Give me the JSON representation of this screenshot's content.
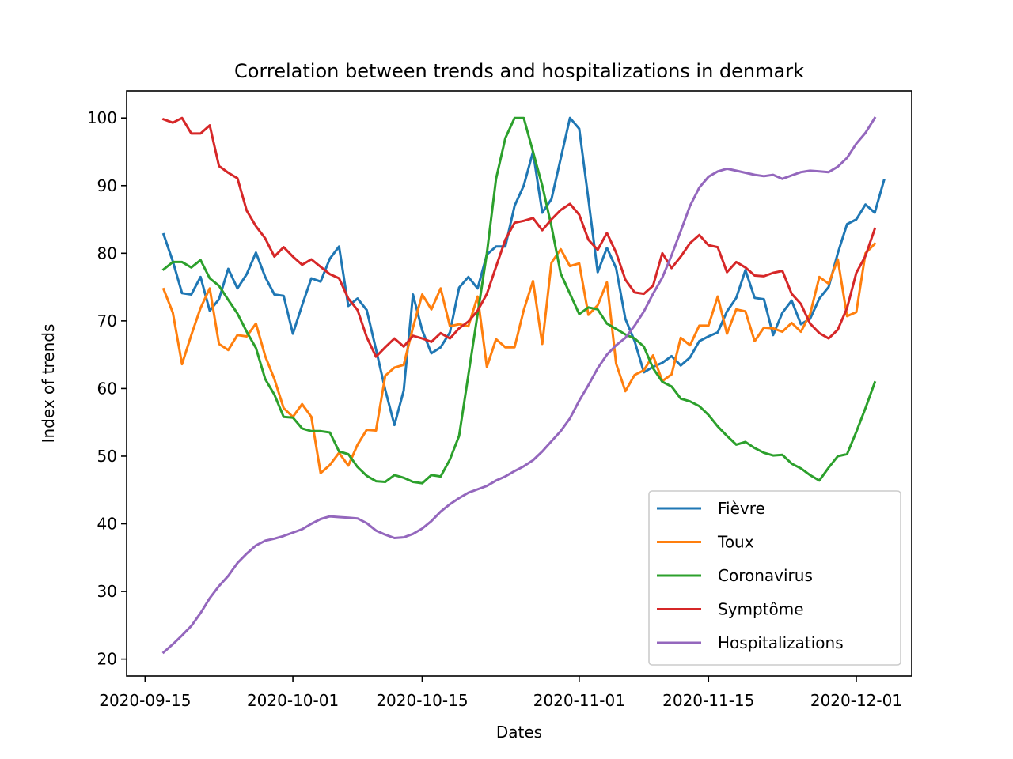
{
  "chart_data": {
    "type": "line",
    "title": "Correlation between trends and hospitalizations in denmark",
    "xlabel": "Dates",
    "ylabel": "Index of trends",
    "x_start": "2020-09-17",
    "x_tick_labels": [
      "2020-09-15",
      "2020-10-01",
      "2020-10-15",
      "2020-11-01",
      "2020-11-15",
      "2020-12-01"
    ],
    "y_ticks": [
      20,
      30,
      40,
      50,
      60,
      70,
      80,
      90,
      100
    ],
    "xlim": [
      "2020-09-13",
      "2020-12-07"
    ],
    "ylim": [
      17.5,
      104
    ],
    "grid": false,
    "legend_position": "lower-right",
    "series": [
      {
        "name": "Fièvre",
        "color": "#1f77b4",
        "values": [
          82.8,
          78.8,
          74.1,
          73.9,
          76.5,
          71.5,
          73.2,
          77.7,
          74.8,
          76.9,
          80.1,
          76.5,
          73.9,
          73.7,
          68.1,
          72.3,
          76.3,
          75.8,
          79.2,
          81.0,
          72.2,
          73.3,
          71.6,
          65.8,
          59.8,
          54.6,
          59.7,
          73.9,
          68.6,
          65.2,
          66.1,
          68.3,
          74.9,
          76.5,
          74.8,
          79.8,
          81.0,
          81.0,
          87.0,
          90.0,
          95.0,
          86.0,
          88.0,
          94.0,
          100.0,
          98.4,
          88.0,
          77.2,
          80.8,
          77.8,
          70.3,
          67.0,
          62.4,
          63.2,
          63.8,
          64.8,
          63.4,
          64.6,
          67.0,
          67.7,
          68.3,
          71.4,
          73.4,
          77.5,
          73.4,
          73.2,
          67.9,
          71.2,
          73.0,
          69.5,
          70.3,
          73.3,
          75.0,
          80.0,
          84.3,
          85.0,
          87.2,
          86.0,
          90.8
        ]
      },
      {
        "name": "Toux",
        "color": "#ff7f0e",
        "values": [
          74.7,
          71.2,
          63.6,
          67.9,
          71.9,
          74.8,
          66.6,
          65.7,
          67.9,
          67.7,
          69.6,
          64.8,
          61.4,
          57.1,
          55.8,
          57.7,
          55.8,
          47.5,
          48.7,
          50.5,
          48.6,
          51.7,
          53.9,
          53.8,
          61.9,
          63.1,
          63.5,
          69.0,
          73.9,
          71.7,
          74.8,
          69.2,
          69.5,
          69.2,
          73.6,
          63.2,
          67.3,
          66.1,
          66.1,
          71.6,
          75.9,
          66.6,
          78.6,
          80.6,
          78.1,
          78.5,
          70.9,
          72.3,
          75.7,
          63.7,
          59.6,
          62.0,
          62.7,
          64.9,
          61.1,
          62.1,
          67.5,
          66.4,
          69.3,
          69.3,
          73.6,
          68.1,
          71.7,
          71.4,
          67.0,
          69.0,
          68.9,
          68.4,
          69.7,
          68.4,
          71.0,
          76.5,
          75.5,
          79.1,
          70.7,
          71.3,
          80.0,
          81.4
        ]
      },
      {
        "name": "Coronavirus",
        "color": "#2ca02c",
        "values": [
          77.6,
          78.7,
          78.7,
          77.9,
          79.0,
          76.3,
          75.2,
          73.1,
          71.1,
          68.4,
          66.0,
          61.4,
          59.1,
          55.8,
          55.7,
          54.1,
          53.7,
          53.7,
          53.5,
          50.7,
          50.3,
          48.4,
          47.1,
          46.3,
          46.2,
          47.2,
          46.8,
          46.2,
          46.0,
          47.2,
          47.0,
          49.5,
          53.0,
          62.0,
          71.0,
          80.0,
          91.0,
          97.0,
          100.0,
          100.0,
          95.0,
          90.0,
          84.0,
          77.0,
          74.0,
          71.0,
          72.0,
          71.7,
          69.6,
          68.8,
          68.0,
          67.4,
          66.2,
          63.0,
          61.0,
          60.3,
          58.5,
          58.1,
          57.4,
          56.1,
          54.4,
          53.0,
          51.7,
          52.1,
          51.2,
          50.5,
          50.1,
          50.2,
          48.9,
          48.2,
          47.2,
          46.4,
          48.3,
          50.0,
          50.3,
          53.6,
          57.1,
          60.9
        ]
      },
      {
        "name": "Symptôme",
        "color": "#d62728",
        "values": [
          99.8,
          99.3,
          100.0,
          97.7,
          97.7,
          98.9,
          92.9,
          91.9,
          91.1,
          86.3,
          84.0,
          82.2,
          79.5,
          80.9,
          79.5,
          78.3,
          79.1,
          78.0,
          76.9,
          76.3,
          73.3,
          71.6,
          67.6,
          64.7,
          66.1,
          67.4,
          66.2,
          67.8,
          67.4,
          66.9,
          68.2,
          67.4,
          68.9,
          69.9,
          71.5,
          74.0,
          78.0,
          82.0,
          84.5,
          84.8,
          85.2,
          83.4,
          85.0,
          86.4,
          87.3,
          85.7,
          82.0,
          80.5,
          83.0,
          80.1,
          76.1,
          74.2,
          74.0,
          75.2,
          80.0,
          77.8,
          79.5,
          81.5,
          82.7,
          81.2,
          80.9,
          77.2,
          78.7,
          77.9,
          76.7,
          76.6,
          77.1,
          77.4,
          74.0,
          72.5,
          69.6,
          68.2,
          67.4,
          68.7,
          71.9,
          77.1,
          79.6,
          83.6
        ]
      },
      {
        "name": "Hospitalizations",
        "color": "#9467bd",
        "values": [
          21.0,
          22.2,
          23.5,
          24.9,
          26.8,
          29.0,
          30.8,
          32.3,
          34.2,
          35.6,
          36.8,
          37.5,
          37.8,
          38.2,
          38.7,
          39.2,
          40.0,
          40.7,
          41.1,
          41.0,
          40.9,
          40.8,
          40.1,
          39.0,
          38.4,
          37.9,
          38.0,
          38.5,
          39.3,
          40.4,
          41.8,
          42.9,
          43.8,
          44.6,
          45.1,
          45.6,
          46.4,
          47.0,
          47.8,
          48.5,
          49.4,
          50.7,
          52.2,
          53.7,
          55.6,
          58.2,
          60.5,
          63.0,
          65.0,
          66.4,
          67.5,
          69.3,
          71.4,
          74.0,
          76.4,
          79.7,
          83.3,
          87.0,
          89.7,
          91.3,
          92.1,
          92.5,
          92.2,
          91.9,
          91.6,
          91.4,
          91.6,
          91.0,
          91.5,
          92.0,
          92.2,
          92.1,
          92.0,
          92.8,
          94.1,
          96.2,
          97.8,
          100.0
        ]
      }
    ]
  }
}
